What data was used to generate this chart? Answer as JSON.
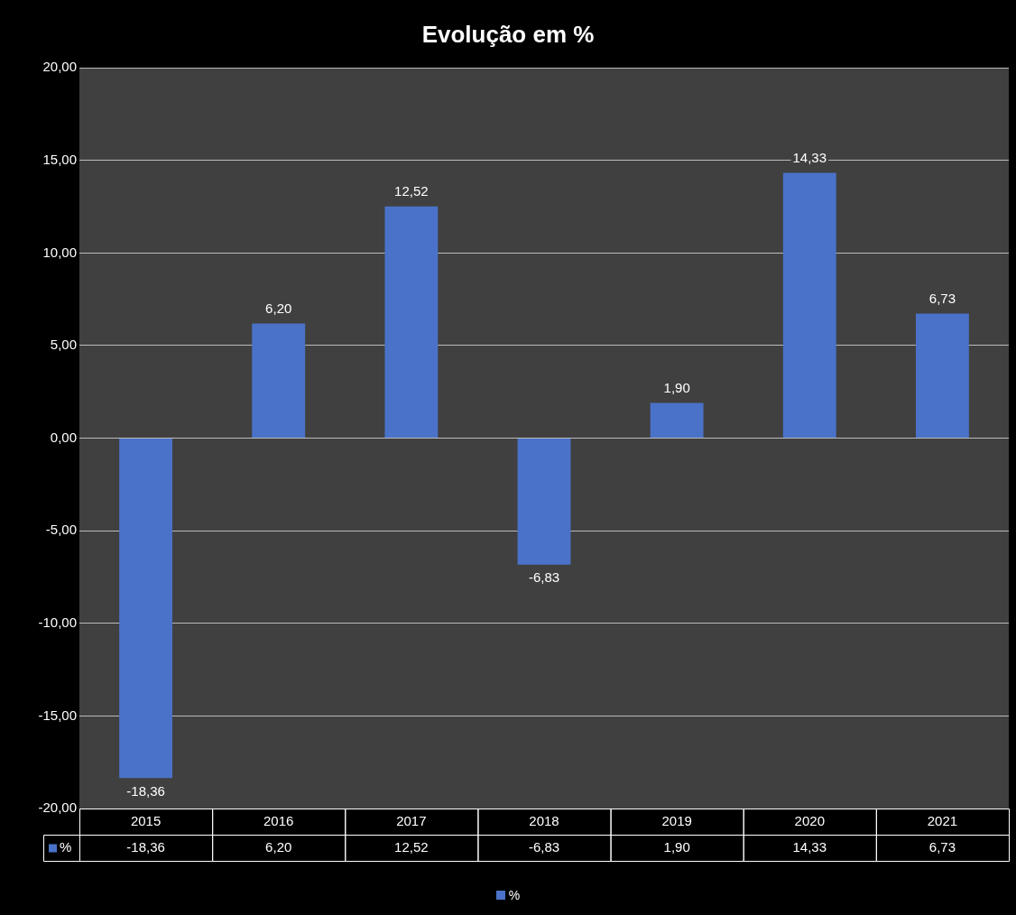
{
  "chart_data": {
    "type": "bar",
    "title": "Evolução em %",
    "categories": [
      "2015",
      "2016",
      "2017",
      "2018",
      "2019",
      "2020",
      "2021"
    ],
    "series": [
      {
        "name": "%",
        "color": "#4a72c8",
        "values": [
          -18.36,
          6.2,
          12.52,
          -6.83,
          1.9,
          14.33,
          6.73
        ],
        "value_labels": [
          "-18,36",
          "6,20",
          "12,52",
          "-6,83",
          "1,90",
          "14,33",
          "6,73"
        ]
      }
    ],
    "ylim": [
      -20,
      20
    ],
    "yticks": [
      {
        "value": -20,
        "label": "-20,00"
      },
      {
        "value": -15,
        "label": "-15,00"
      },
      {
        "value": -10,
        "label": "-10,00"
      },
      {
        "value": -5,
        "label": "-5,00"
      },
      {
        "value": 0,
        "label": "0,00"
      },
      {
        "value": 5,
        "label": "5,00"
      },
      {
        "value": 10,
        "label": "10,00"
      },
      {
        "value": 15,
        "label": "15,00"
      },
      {
        "value": 20,
        "label": "20,00"
      }
    ],
    "grid": "y",
    "legend": "bottom"
  }
}
